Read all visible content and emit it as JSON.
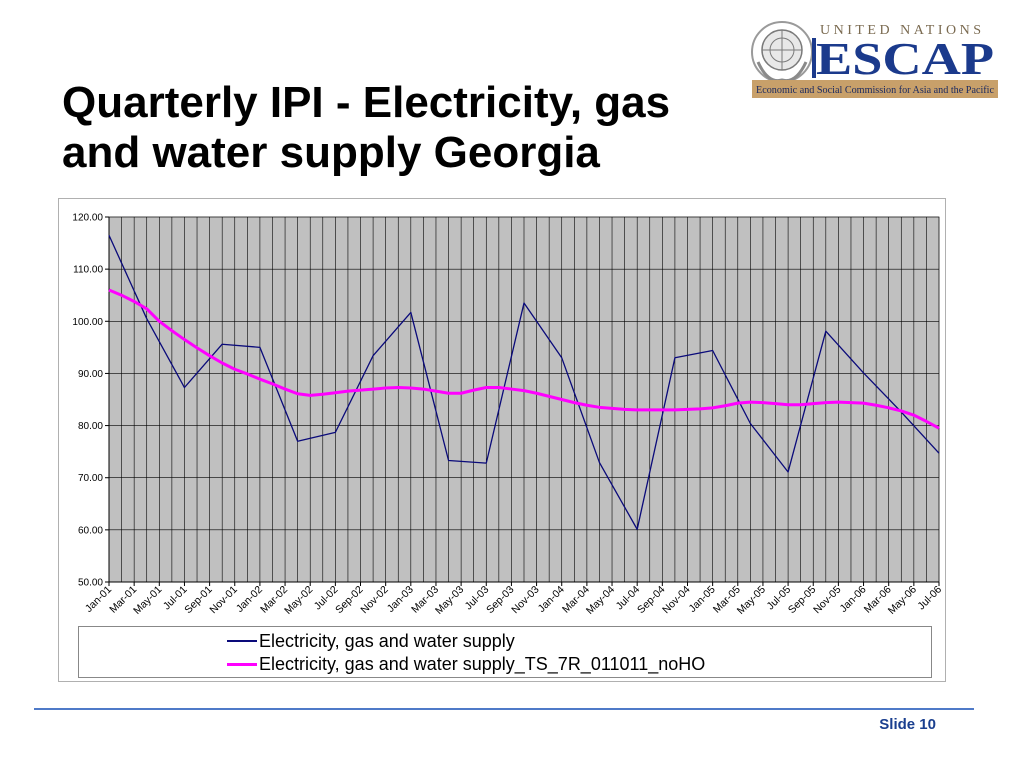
{
  "slide": {
    "title_line1": "Quarterly IPI - Electricity, gas",
    "title_line2": "and water supply Georgia",
    "slide_label": "Slide 10"
  },
  "logo": {
    "org_top": "UNITED NATIONS",
    "org_name": "ESCAP",
    "org_sub": "Economic and Social Commission for Asia and the Pacific",
    "colors": {
      "navy": "#1b3a8c",
      "tan": "#c8a06a"
    }
  },
  "chart_data": {
    "type": "line",
    "categories": [
      "Jan-01",
      "Mar-01",
      "May-01",
      "Jul-01",
      "Sep-01",
      "Nov-01",
      "Jan-02",
      "Mar-02",
      "May-02",
      "Jul-02",
      "Sep-02",
      "Nov-02",
      "Jan-03",
      "Mar-03",
      "May-03",
      "Jul-03",
      "Sep-03",
      "Nov-03",
      "Jan-04",
      "Mar-04",
      "May-04",
      "Jul-04",
      "Sep-04",
      "Nov-04",
      "Jan-05",
      "Mar-05",
      "May-05",
      "Jul-05",
      "Sep-05",
      "Nov-05",
      "Jan-06",
      "Mar-06",
      "May-06",
      "Jul-06"
    ],
    "series": [
      {
        "name": "Electricity, gas and water supply",
        "color": "#0a0a7a",
        "x": [
          "Jan-01",
          "Apr-01",
          "Jul-01",
          "Oct-01",
          "Jan-02",
          "Apr-02",
          "Jul-02",
          "Oct-02",
          "Jan-03",
          "Apr-03",
          "Jul-03",
          "Oct-03",
          "Jan-04",
          "Apr-04",
          "Jul-04",
          "Oct-04",
          "Jan-05",
          "Apr-05",
          "Jul-05",
          "Oct-05",
          "Jan-06",
          "Apr-06",
          "Jul-06"
        ],
        "values": [
          116.5,
          100.5,
          87.3,
          95.6,
          95.0,
          77.0,
          78.7,
          93.4,
          101.7,
          73.3,
          72.8,
          103.5,
          93.0,
          72.9,
          60.1,
          93.0,
          94.4,
          80.4,
          71.1,
          98.1,
          90.1,
          82.6,
          74.7
        ]
      },
      {
        "name": "Electricity, gas and water supply_TS_7R_011011_noHO",
        "color": "#ff00ff",
        "x": [
          "Jan-01",
          "Feb-01",
          "Mar-01",
          "Apr-01",
          "May-01",
          "Jun-01",
          "Jul-01",
          "Aug-01",
          "Sep-01",
          "Oct-01",
          "Nov-01",
          "Dec-01",
          "Jan-02",
          "Feb-02",
          "Mar-02",
          "Apr-02",
          "May-02",
          "Jun-02",
          "Jul-02",
          "Aug-02",
          "Sep-02",
          "Oct-02",
          "Nov-02",
          "Dec-02",
          "Jan-03",
          "Feb-03",
          "Mar-03",
          "Apr-03",
          "May-03",
          "Jun-03",
          "Jul-03",
          "Aug-03",
          "Sep-03",
          "Oct-03",
          "Nov-03",
          "Dec-03",
          "Jan-04",
          "Feb-04",
          "Mar-04",
          "Apr-04",
          "May-04",
          "Jun-04",
          "Jul-04",
          "Aug-04",
          "Sep-04",
          "Oct-04",
          "Nov-04",
          "Dec-04",
          "Jan-05",
          "Feb-05",
          "Mar-05",
          "Apr-05",
          "May-05",
          "Jun-05",
          "Jul-05",
          "Aug-05",
          "Sep-05",
          "Oct-05",
          "Nov-05",
          "Dec-05",
          "Jan-06",
          "Feb-06",
          "Mar-06",
          "Apr-06",
          "May-06",
          "Jun-06",
          "Jul-06"
        ],
        "values": [
          106.0,
          105.0,
          103.8,
          102.4,
          100.0,
          98.2,
          96.5,
          94.9,
          93.4,
          92.0,
          90.8,
          89.9,
          88.9,
          88.0,
          87.0,
          86.1,
          85.8,
          86.0,
          86.3,
          86.6,
          86.8,
          87.0,
          87.2,
          87.3,
          87.2,
          87.0,
          86.6,
          86.2,
          86.2,
          86.8,
          87.3,
          87.3,
          87.0,
          86.7,
          86.2,
          85.6,
          85.0,
          84.4,
          83.9,
          83.5,
          83.3,
          83.1,
          83.0,
          83.0,
          83.0,
          83.0,
          83.1,
          83.2,
          83.4,
          83.8,
          84.3,
          84.5,
          84.4,
          84.2,
          84.0,
          84.0,
          84.2,
          84.4,
          84.5,
          84.4,
          84.3,
          83.9,
          83.4,
          82.8,
          82.0,
          80.8,
          79.5
        ]
      }
    ],
    "ylim": [
      50,
      120
    ],
    "yticks": [
      "50.00",
      "60.00",
      "70.00",
      "80.00",
      "90.00",
      "100.00",
      "110.00",
      "120.00"
    ],
    "grid": true,
    "legend": "bottom"
  }
}
